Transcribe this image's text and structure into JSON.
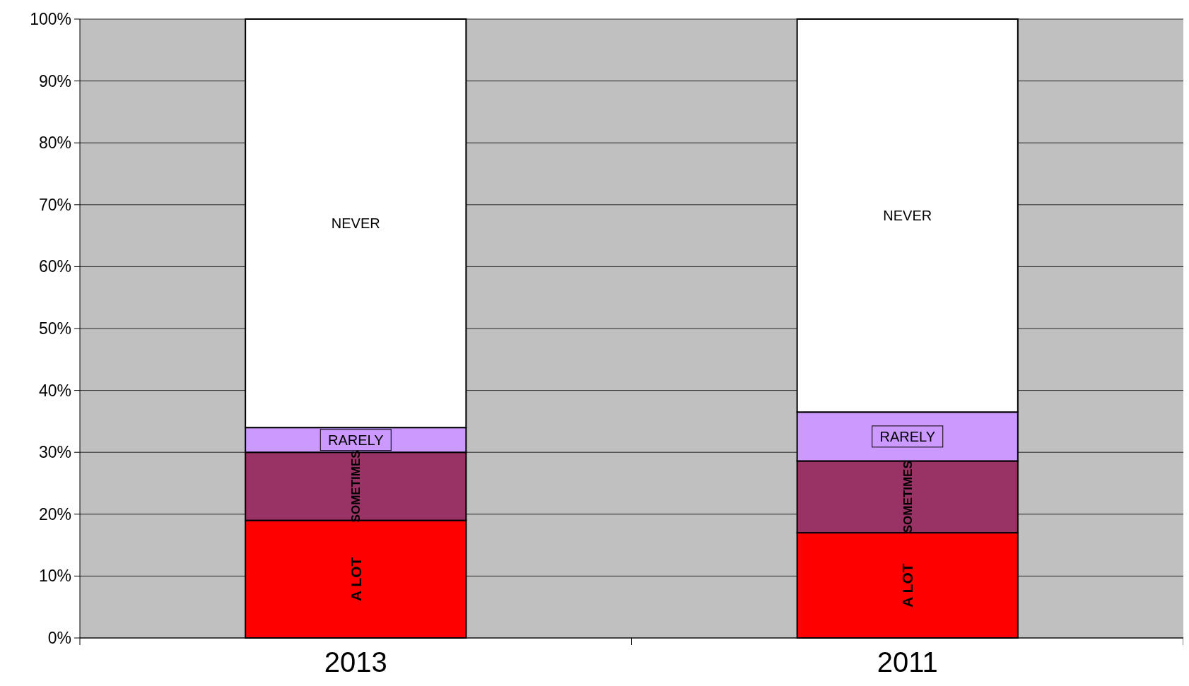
{
  "chart_data": {
    "type": "bar",
    "stacked": true,
    "categories": [
      "2013",
      "2011"
    ],
    "series": [
      {
        "name": "A LOT",
        "color": "#ff0000",
        "values": [
          19,
          17
        ]
      },
      {
        "name": "SOMETIMES",
        "color": "#993366",
        "values": [
          11,
          11.6
        ]
      },
      {
        "name": "RARELY",
        "color": "#cc99ff",
        "values": [
          4,
          7.9
        ]
      },
      {
        "name": "NEVER",
        "color": "#ffffff",
        "values": [
          66,
          63.5
        ]
      }
    ],
    "ylim": [
      0,
      100
    ],
    "yticks": [
      {
        "value": 0,
        "label": "0%"
      },
      {
        "value": 10,
        "label": "10%"
      },
      {
        "value": 20,
        "label": "20%"
      },
      {
        "value": 30,
        "label": "30%"
      },
      {
        "value": 40,
        "label": "40%"
      },
      {
        "value": 50,
        "label": "50%"
      },
      {
        "value": 60,
        "label": "60%"
      },
      {
        "value": 70,
        "label": "70%"
      },
      {
        "value": 80,
        "label": "80%"
      },
      {
        "value": 90,
        "label": "90%"
      },
      {
        "value": 100,
        "label": "100%"
      }
    ],
    "grid": "y"
  }
}
